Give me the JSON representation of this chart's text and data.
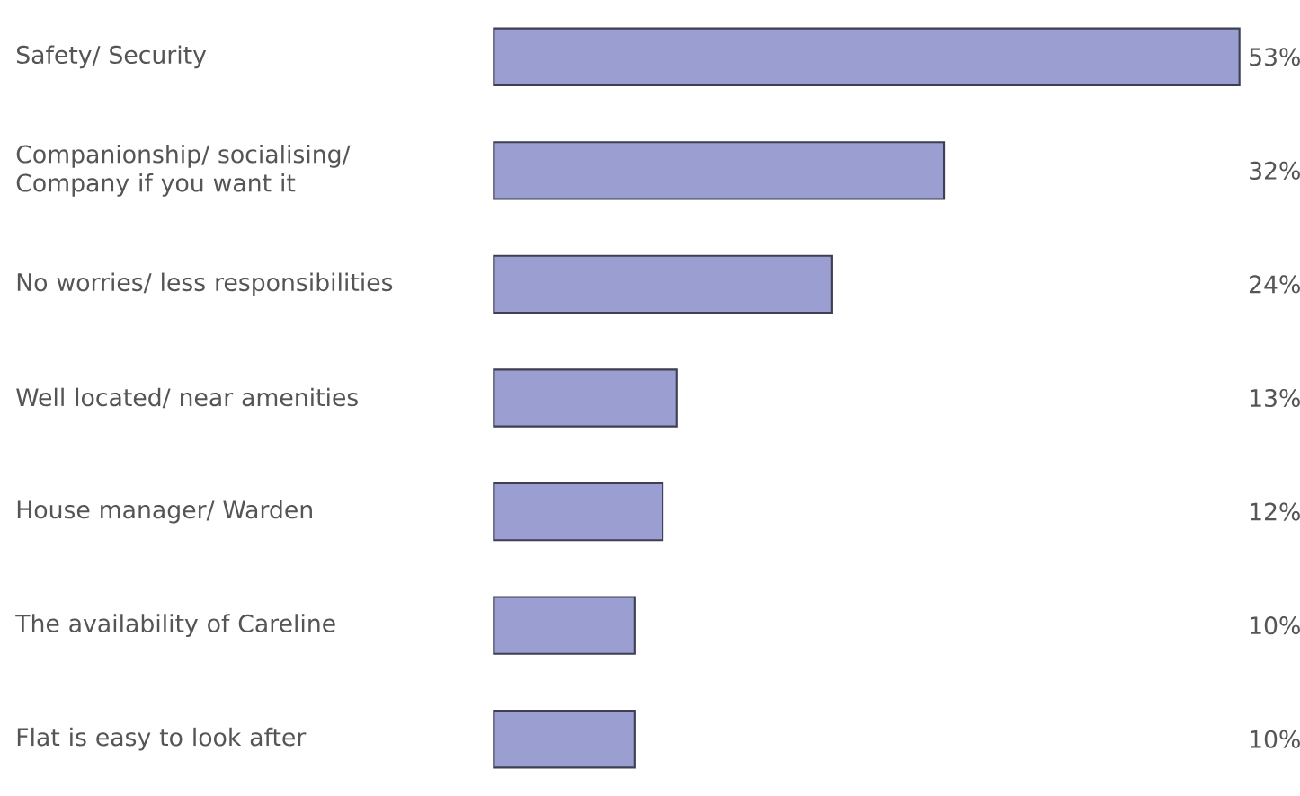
{
  "chart_data": {
    "type": "bar",
    "orientation": "horizontal",
    "categories": [
      "Safety/ Security",
      "Companionship/ socialising/ Company if you want it",
      "No worries/ less responsibilities",
      "Well located/ near amenities",
      "House manager/ Warden",
      "The availability of Careline",
      "Flat is easy to look after"
    ],
    "values": [
      53,
      32,
      24,
      13,
      12,
      10,
      10
    ],
    "value_labels": [
      "53%",
      "32%",
      "24%",
      "13%",
      "12%",
      "10%",
      "10%"
    ],
    "color": "#9a9ed0"
  }
}
